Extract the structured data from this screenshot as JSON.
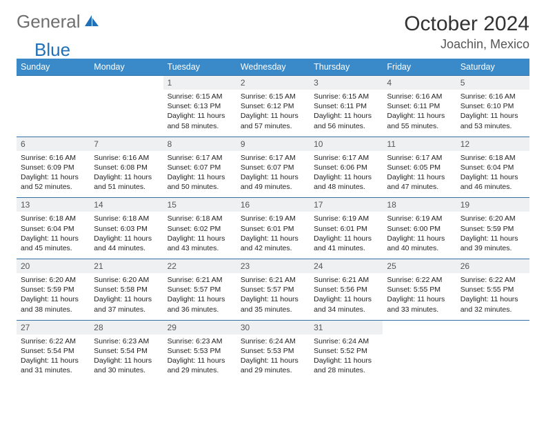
{
  "logo": {
    "part1": "General",
    "part2": "Blue",
    "sail_color": "#1f70b8"
  },
  "title": "October 2024",
  "location": "Joachin, Mexico",
  "colors": {
    "header_bg": "#3a8ac9",
    "header_text": "#ffffff",
    "row_border": "#2f6fa3",
    "daynum_bg": "#eef0f1",
    "text": "#222222"
  },
  "font": {
    "family": "Arial",
    "title_size": 30,
    "location_size": 18,
    "th_size": 12.5,
    "daynum_size": 12,
    "body_size": 10.5
  },
  "day_headers": [
    "Sunday",
    "Monday",
    "Tuesday",
    "Wednesday",
    "Thursday",
    "Friday",
    "Saturday"
  ],
  "weeks": [
    [
      null,
      null,
      {
        "n": "1",
        "sr": "6:15 AM",
        "ss": "6:13 PM",
        "dl": "11 hours and 58 minutes."
      },
      {
        "n": "2",
        "sr": "6:15 AM",
        "ss": "6:12 PM",
        "dl": "11 hours and 57 minutes."
      },
      {
        "n": "3",
        "sr": "6:15 AM",
        "ss": "6:11 PM",
        "dl": "11 hours and 56 minutes."
      },
      {
        "n": "4",
        "sr": "6:16 AM",
        "ss": "6:11 PM",
        "dl": "11 hours and 55 minutes."
      },
      {
        "n": "5",
        "sr": "6:16 AM",
        "ss": "6:10 PM",
        "dl": "11 hours and 53 minutes."
      }
    ],
    [
      {
        "n": "6",
        "sr": "6:16 AM",
        "ss": "6:09 PM",
        "dl": "11 hours and 52 minutes."
      },
      {
        "n": "7",
        "sr": "6:16 AM",
        "ss": "6:08 PM",
        "dl": "11 hours and 51 minutes."
      },
      {
        "n": "8",
        "sr": "6:17 AM",
        "ss": "6:07 PM",
        "dl": "11 hours and 50 minutes."
      },
      {
        "n": "9",
        "sr": "6:17 AM",
        "ss": "6:07 PM",
        "dl": "11 hours and 49 minutes."
      },
      {
        "n": "10",
        "sr": "6:17 AM",
        "ss": "6:06 PM",
        "dl": "11 hours and 48 minutes."
      },
      {
        "n": "11",
        "sr": "6:17 AM",
        "ss": "6:05 PM",
        "dl": "11 hours and 47 minutes."
      },
      {
        "n": "12",
        "sr": "6:18 AM",
        "ss": "6:04 PM",
        "dl": "11 hours and 46 minutes."
      }
    ],
    [
      {
        "n": "13",
        "sr": "6:18 AM",
        "ss": "6:04 PM",
        "dl": "11 hours and 45 minutes."
      },
      {
        "n": "14",
        "sr": "6:18 AM",
        "ss": "6:03 PM",
        "dl": "11 hours and 44 minutes."
      },
      {
        "n": "15",
        "sr": "6:18 AM",
        "ss": "6:02 PM",
        "dl": "11 hours and 43 minutes."
      },
      {
        "n": "16",
        "sr": "6:19 AM",
        "ss": "6:01 PM",
        "dl": "11 hours and 42 minutes."
      },
      {
        "n": "17",
        "sr": "6:19 AM",
        "ss": "6:01 PM",
        "dl": "11 hours and 41 minutes."
      },
      {
        "n": "18",
        "sr": "6:19 AM",
        "ss": "6:00 PM",
        "dl": "11 hours and 40 minutes."
      },
      {
        "n": "19",
        "sr": "6:20 AM",
        "ss": "5:59 PM",
        "dl": "11 hours and 39 minutes."
      }
    ],
    [
      {
        "n": "20",
        "sr": "6:20 AM",
        "ss": "5:59 PM",
        "dl": "11 hours and 38 minutes."
      },
      {
        "n": "21",
        "sr": "6:20 AM",
        "ss": "5:58 PM",
        "dl": "11 hours and 37 minutes."
      },
      {
        "n": "22",
        "sr": "6:21 AM",
        "ss": "5:57 PM",
        "dl": "11 hours and 36 minutes."
      },
      {
        "n": "23",
        "sr": "6:21 AM",
        "ss": "5:57 PM",
        "dl": "11 hours and 35 minutes."
      },
      {
        "n": "24",
        "sr": "6:21 AM",
        "ss": "5:56 PM",
        "dl": "11 hours and 34 minutes."
      },
      {
        "n": "25",
        "sr": "6:22 AM",
        "ss": "5:55 PM",
        "dl": "11 hours and 33 minutes."
      },
      {
        "n": "26",
        "sr": "6:22 AM",
        "ss": "5:55 PM",
        "dl": "11 hours and 32 minutes."
      }
    ],
    [
      {
        "n": "27",
        "sr": "6:22 AM",
        "ss": "5:54 PM",
        "dl": "11 hours and 31 minutes."
      },
      {
        "n": "28",
        "sr": "6:23 AM",
        "ss": "5:54 PM",
        "dl": "11 hours and 30 minutes."
      },
      {
        "n": "29",
        "sr": "6:23 AM",
        "ss": "5:53 PM",
        "dl": "11 hours and 29 minutes."
      },
      {
        "n": "30",
        "sr": "6:24 AM",
        "ss": "5:53 PM",
        "dl": "11 hours and 29 minutes."
      },
      {
        "n": "31",
        "sr": "6:24 AM",
        "ss": "5:52 PM",
        "dl": "11 hours and 28 minutes."
      },
      null,
      null
    ]
  ],
  "labels": {
    "sunrise": "Sunrise:",
    "sunset": "Sunset:",
    "daylight": "Daylight:"
  }
}
